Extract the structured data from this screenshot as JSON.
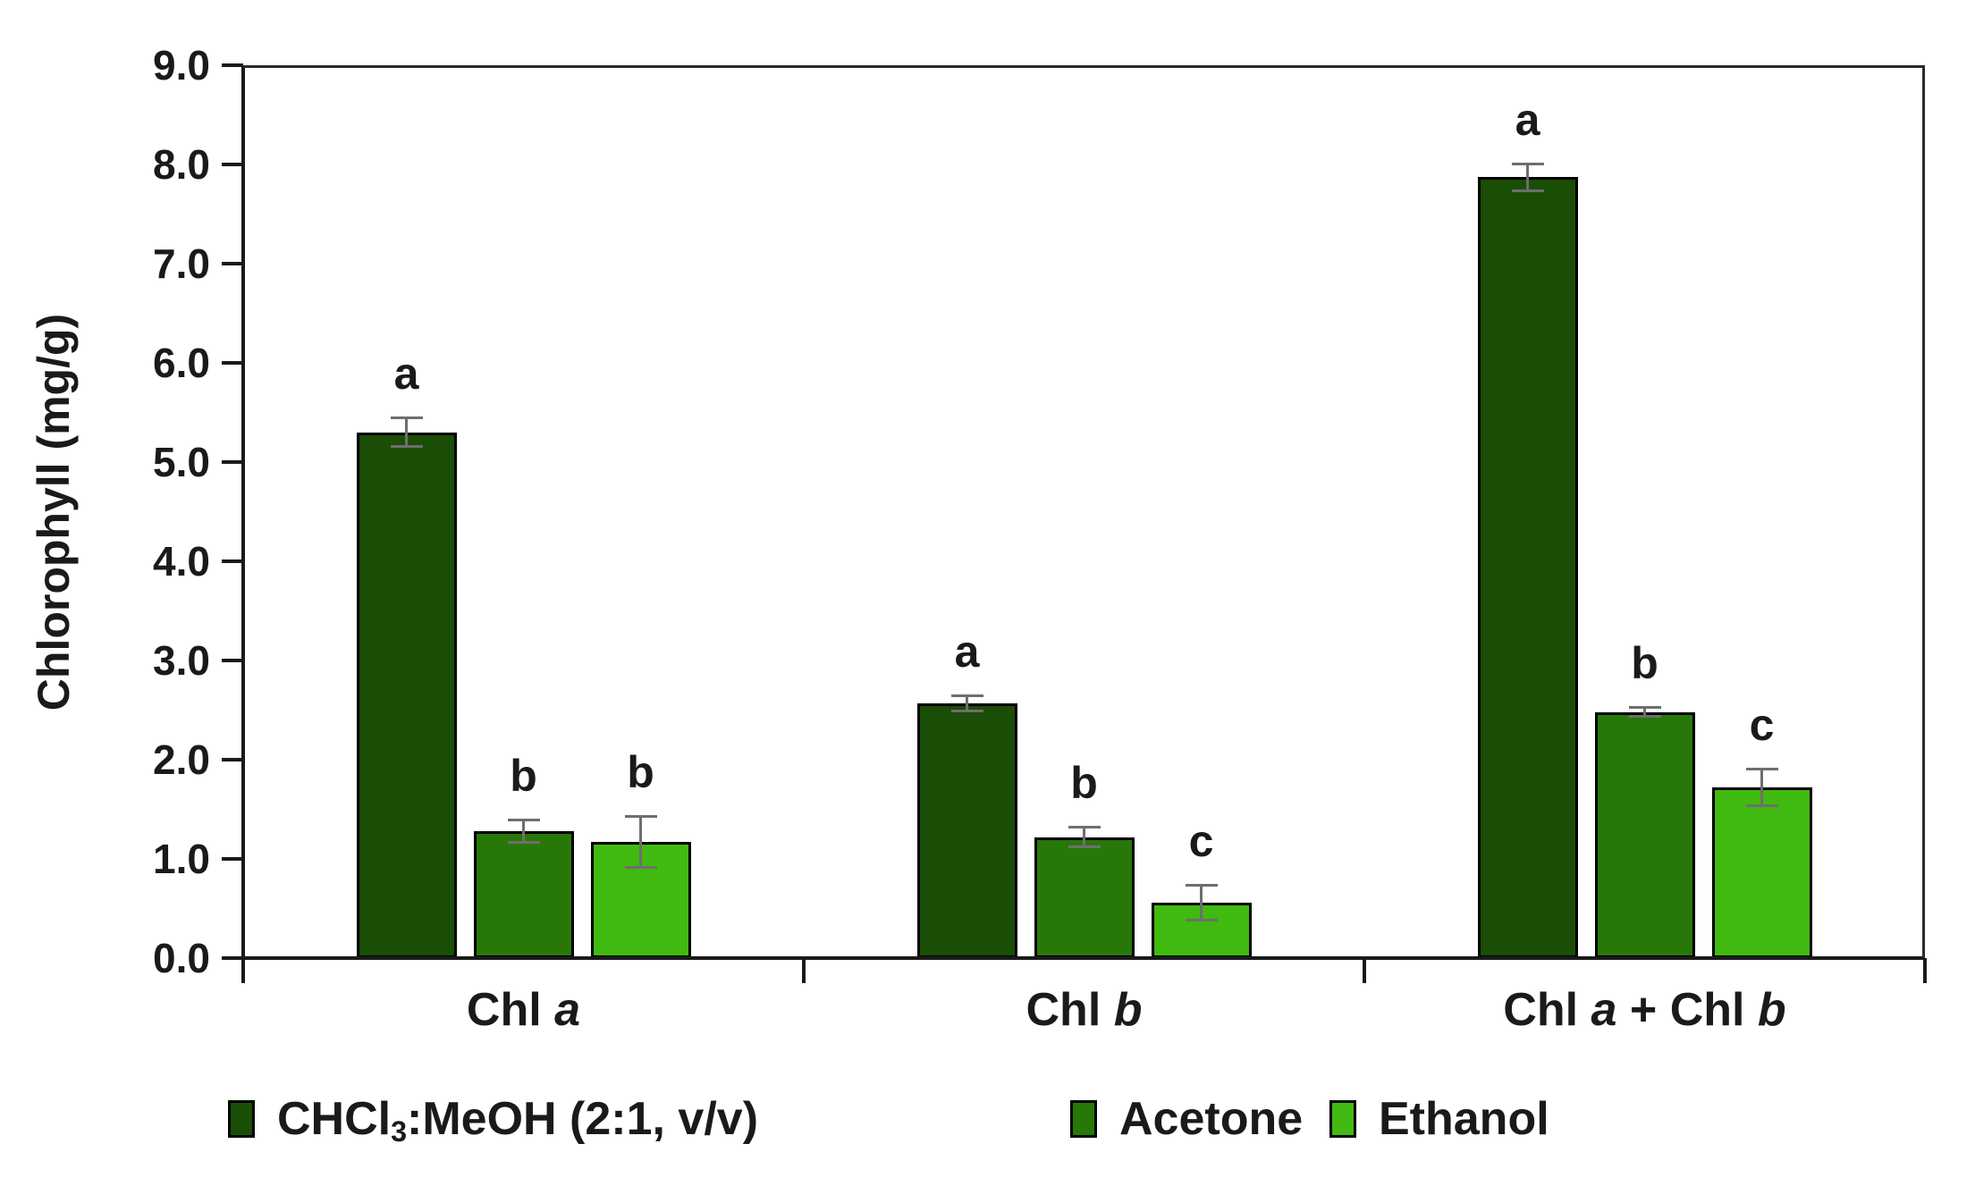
{
  "chart_data": {
    "type": "bar",
    "title": "",
    "ylabel": "Chlorophyll (mg/g)",
    "xlabel": "",
    "ylim": [
      0,
      9
    ],
    "y_tick_step": 1.0,
    "y_tick_labels": [
      "0.0",
      "1.0",
      "2.0",
      "3.0",
      "4.0",
      "5.0",
      "6.0",
      "7.0",
      "8.0",
      "9.0"
    ],
    "grid": false,
    "legend_position": "bottom",
    "categories": [
      "Chl a",
      "Chl b",
      "Chl a + Chl b"
    ],
    "categories_parts": [
      [
        {
          "t": "Chl ",
          "i": false
        },
        {
          "t": "a",
          "i": true
        }
      ],
      [
        {
          "t": "Chl ",
          "i": false
        },
        {
          "t": "b",
          "i": true
        }
      ],
      [
        {
          "t": "Chl ",
          "i": false
        },
        {
          "t": "a",
          "i": true
        },
        {
          "t": " + Chl ",
          "i": false
        },
        {
          "t": "b",
          "i": true
        }
      ]
    ],
    "series": [
      {
        "name": "CHCl3:MeOH (2:1, v/v)",
        "name_parts": [
          {
            "t": "CHCl"
          },
          {
            "t": "3",
            "sub": true
          },
          {
            "t": ":MeOH (2:1, v/v)"
          }
        ],
        "color": "#1a4d06",
        "values": [
          5.3,
          2.57,
          7.87
        ],
        "errors": [
          0.15,
          0.08,
          0.14
        ],
        "letters": [
          "a",
          "a",
          "a"
        ]
      },
      {
        "name": "Acetone",
        "name_parts": [
          {
            "t": "Acetone"
          }
        ],
        "color": "#277808",
        "values": [
          1.28,
          1.22,
          2.48
        ],
        "errors": [
          0.12,
          0.1,
          0.05
        ],
        "letters": [
          "b",
          "b",
          "b"
        ]
      },
      {
        "name": "Ethanol",
        "name_parts": [
          {
            "t": "Ethanol"
          }
        ],
        "color": "#40ba10",
        "values": [
          1.17,
          0.56,
          1.72
        ],
        "errors": [
          0.26,
          0.18,
          0.19
        ],
        "letters": [
          "b",
          "c",
          "c"
        ]
      }
    ],
    "error_bar_color": "#6e6e6e",
    "axis_color": "#1a1a1a",
    "text_color": "#1a1a1a",
    "background_color": "#ffffff"
  }
}
